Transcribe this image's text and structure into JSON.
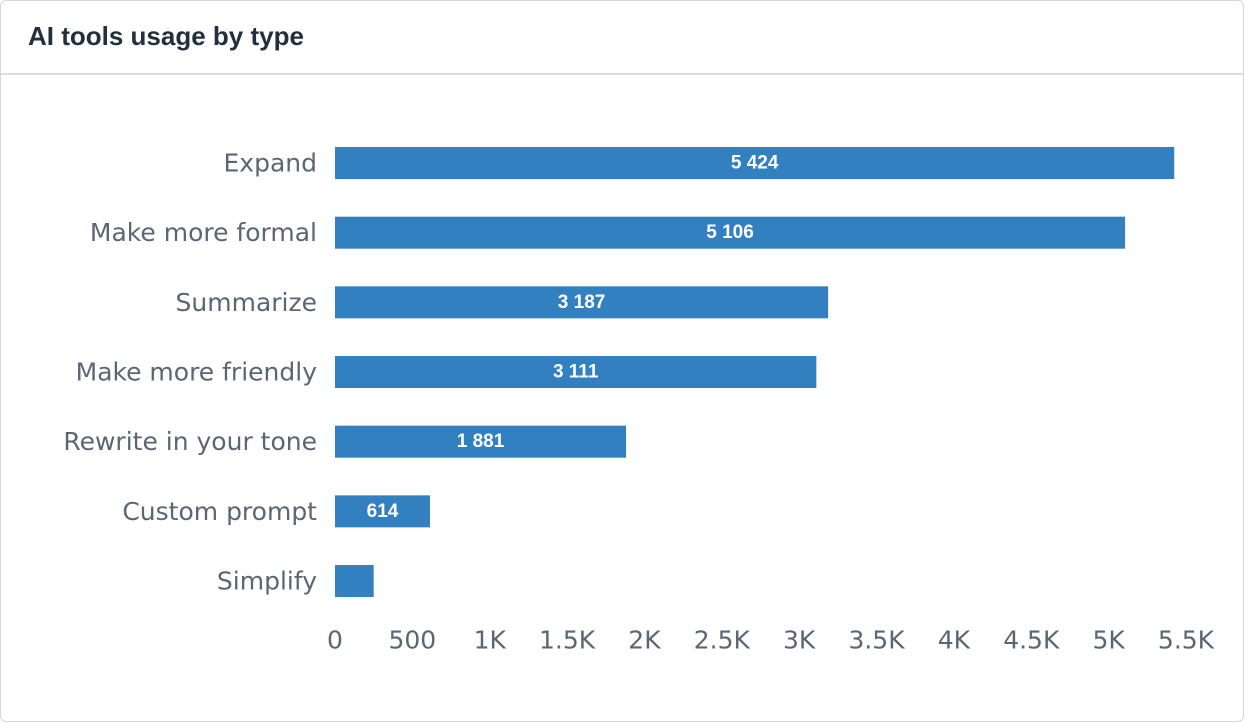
{
  "card": {
    "title": "AI tools usage by type"
  },
  "chart_data": {
    "type": "bar",
    "orientation": "horizontal",
    "title": "AI tools usage by type",
    "xlabel": "",
    "ylabel": "",
    "categories": [
      "Expand",
      "Make more formal",
      "Summarize",
      "Make more friendly",
      "Rewrite in your tone",
      "Custom prompt",
      "Simplify"
    ],
    "values": [
      5424,
      5106,
      3187,
      3111,
      1881,
      614,
      250
    ],
    "value_labels": [
      "5 424",
      "5 106",
      "3 187",
      "3 111",
      "1 881",
      "614",
      ""
    ],
    "xlim": [
      0,
      5500
    ],
    "x_ticks": [
      0,
      500,
      1000,
      1500,
      2000,
      2500,
      3000,
      3500,
      4000,
      4500,
      5000,
      5500
    ],
    "x_tick_labels": [
      "0",
      "500",
      "1K",
      "1.5K",
      "2K",
      "2.5K",
      "3K",
      "3.5K",
      "4K",
      "4.5K",
      "5K",
      "5.5K"
    ],
    "bar_color": "#3380c0",
    "grid": false,
    "legend": "none"
  }
}
